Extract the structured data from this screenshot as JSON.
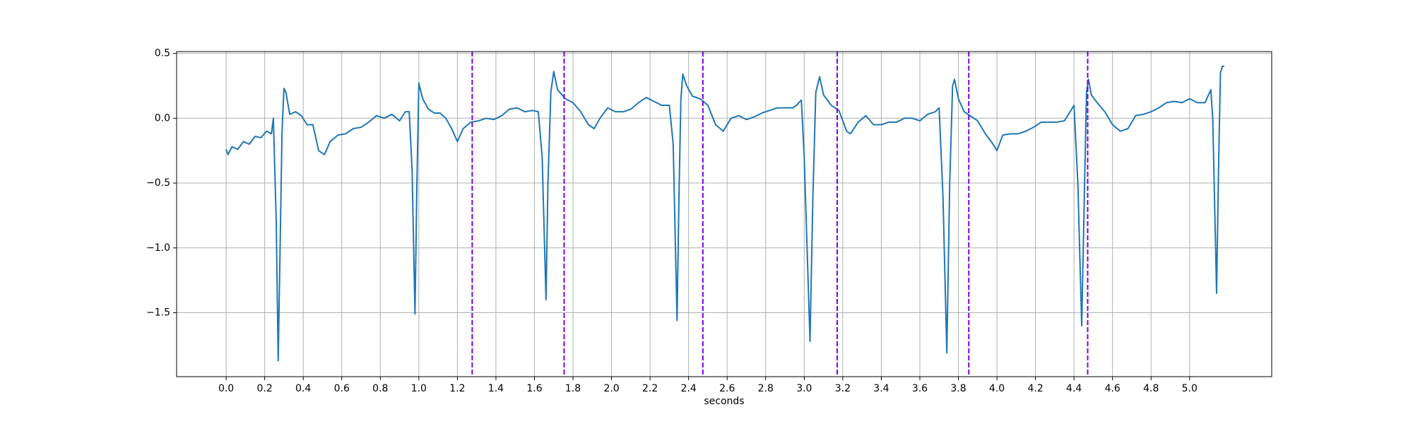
{
  "chart_data": {
    "type": "line",
    "xlabel": "seconds",
    "x": [
      0.0,
      0.01,
      0.03,
      0.06,
      0.09,
      0.12,
      0.15,
      0.18,
      0.21,
      0.235,
      0.245,
      0.26,
      0.27,
      0.28,
      0.29,
      0.3,
      0.31,
      0.33,
      0.36,
      0.39,
      0.42,
      0.45,
      0.48,
      0.51,
      0.54,
      0.58,
      0.62,
      0.66,
      0.7,
      0.74,
      0.78,
      0.82,
      0.86,
      0.9,
      0.93,
      0.95,
      0.965,
      0.98,
      0.99,
      1.0,
      1.02,
      1.05,
      1.08,
      1.11,
      1.14,
      1.17,
      1.2,
      1.23,
      1.27,
      1.31,
      1.35,
      1.39,
      1.43,
      1.47,
      1.51,
      1.55,
      1.59,
      1.62,
      1.64,
      1.66,
      1.67,
      1.685,
      1.7,
      1.72,
      1.76,
      1.8,
      1.84,
      1.88,
      1.91,
      1.94,
      1.98,
      2.02,
      2.06,
      2.1,
      2.14,
      2.18,
      2.22,
      2.26,
      2.3,
      2.32,
      2.34,
      2.35,
      2.36,
      2.37,
      2.39,
      2.42,
      2.46,
      2.5,
      2.54,
      2.58,
      2.62,
      2.66,
      2.7,
      2.74,
      2.78,
      2.82,
      2.86,
      2.9,
      2.94,
      2.96,
      2.985,
      3.0,
      3.03,
      3.045,
      3.06,
      3.08,
      3.1,
      3.14,
      3.18,
      3.22,
      3.24,
      3.28,
      3.32,
      3.36,
      3.4,
      3.44,
      3.48,
      3.52,
      3.56,
      3.6,
      3.64,
      3.68,
      3.7,
      3.72,
      3.74,
      3.755,
      3.77,
      3.78,
      3.8,
      3.83,
      3.86,
      3.9,
      3.94,
      3.98,
      4.0,
      4.03,
      4.07,
      4.11,
      4.15,
      4.19,
      4.23,
      4.27,
      4.31,
      4.35,
      4.38,
      4.4,
      4.42,
      4.44,
      4.455,
      4.465,
      4.475,
      4.49,
      4.52,
      4.56,
      4.6,
      4.64,
      4.68,
      4.72,
      4.76,
      4.8,
      4.84,
      4.88,
      4.92,
      4.96,
      5.0,
      5.04,
      5.08,
      5.11,
      5.12,
      5.14,
      5.15,
      5.16,
      5.17,
      5.18
    ],
    "values": [
      -0.24,
      -0.28,
      -0.22,
      -0.24,
      -0.18,
      -0.2,
      -0.14,
      -0.15,
      -0.1,
      -0.12,
      0.0,
      -0.8,
      -1.87,
      -1.0,
      -0.1,
      0.23,
      0.2,
      0.03,
      0.05,
      0.02,
      -0.05,
      -0.05,
      -0.25,
      -0.28,
      -0.18,
      -0.13,
      -0.12,
      -0.08,
      -0.07,
      -0.03,
      0.02,
      0.0,
      0.03,
      -0.02,
      0.05,
      0.05,
      -0.4,
      -1.51,
      -0.5,
      0.27,
      0.15,
      0.07,
      0.04,
      0.04,
      0.0,
      -0.08,
      -0.18,
      -0.08,
      -0.03,
      -0.02,
      0.0,
      -0.01,
      0.02,
      0.07,
      0.08,
      0.05,
      0.06,
      0.05,
      -0.3,
      -1.4,
      -0.5,
      0.2,
      0.36,
      0.22,
      0.15,
      0.12,
      0.05,
      -0.05,
      -0.08,
      0.0,
      0.08,
      0.05,
      0.05,
      0.07,
      0.12,
      0.16,
      0.13,
      0.1,
      0.1,
      -0.2,
      -1.56,
      -0.6,
      0.15,
      0.34,
      0.25,
      0.17,
      0.15,
      0.1,
      -0.05,
      -0.1,
      0.0,
      0.02,
      -0.01,
      0.01,
      0.04,
      0.06,
      0.08,
      0.08,
      0.08,
      0.1,
      0.14,
      -0.3,
      -1.72,
      -0.6,
      0.2,
      0.32,
      0.18,
      0.1,
      0.06,
      -0.1,
      -0.12,
      -0.03,
      0.02,
      -0.05,
      -0.05,
      -0.03,
      -0.03,
      0.0,
      0.0,
      -0.02,
      0.03,
      0.05,
      0.08,
      -0.6,
      -1.81,
      -0.5,
      0.25,
      0.3,
      0.15,
      0.05,
      0.02,
      -0.02,
      -0.12,
      -0.2,
      -0.25,
      -0.13,
      -0.12,
      -0.12,
      -0.1,
      -0.07,
      -0.03,
      -0.03,
      -0.03,
      -0.02,
      0.05,
      0.1,
      -0.5,
      -1.6,
      -0.5,
      0.2,
      0.3,
      0.18,
      0.12,
      0.05,
      -0.05,
      -0.1,
      -0.08,
      0.02,
      0.03,
      0.05,
      0.08,
      0.12,
      0.13,
      0.12,
      0.15,
      0.12,
      0.12,
      0.22,
      0.0,
      -1.35,
      -0.4,
      0.35,
      0.4,
      0.4
    ],
    "color": "#1f77b4",
    "vlines": {
      "x": [
        1.277,
        1.754,
        2.474,
        3.171,
        3.854,
        4.471
      ],
      "color": "#7a00e6"
    },
    "xlim": [
      -0.257,
      5.426
    ],
    "ylim": [
      -1.993,
      0.514
    ],
    "xticks": [
      {
        "value": 0,
        "label": "0.0"
      },
      0.2,
      0.4,
      0.6,
      0.8,
      {
        "value": 1,
        "label": "1.0"
      },
      1.2,
      1.4,
      1.6,
      1.8,
      {
        "value": 2,
        "label": "2.0"
      },
      2.2,
      2.4,
      2.6,
      2.8,
      {
        "value": 3,
        "label": "3.0"
      },
      3.2,
      3.4,
      3.6,
      3.8,
      {
        "value": 4,
        "label": "4.0"
      },
      4.2,
      4.4,
      4.6,
      4.8,
      {
        "value": 5,
        "label": "5.0"
      }
    ],
    "yticks": [
      0.5,
      {
        "value": 0,
        "label": "0.0"
      },
      {
        "value": -0.5,
        "label": "−0.5"
      },
      {
        "value": -1,
        "label": "−1.0"
      },
      {
        "value": -1.5,
        "label": "−1.5"
      }
    ],
    "grid": true
  }
}
